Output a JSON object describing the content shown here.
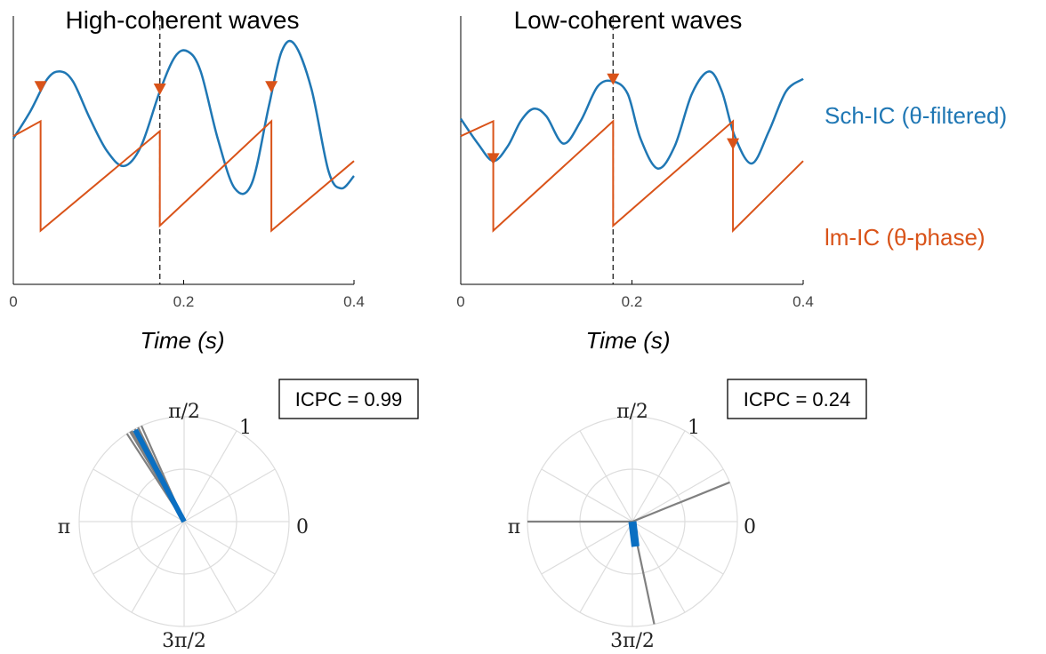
{
  "colors": {
    "wave": "#1f77b4",
    "phase": "#d95319",
    "marker": "#d95319",
    "trial_line": "#808080",
    "mean_vector": "#0a6fc2",
    "grid": "#dddddd",
    "axis": "#000000"
  },
  "legend": {
    "wave_label": "Sch-IC (θ-filtered)",
    "phase_label": "lm-IC (θ-phase)"
  },
  "chart_data": [
    {
      "type": "line",
      "title": "High-coherent waves",
      "xlabel": "Time (s)",
      "xlim": [
        0,
        0.4
      ],
      "xticks": [
        "0",
        "0.2",
        "0.4"
      ],
      "xtick_values": [
        0,
        0.2,
        0.4
      ],
      "event_line_x": 0.172,
      "series": [
        {
          "kind": "wave",
          "x": [
            0,
            0.02,
            0.04,
            0.055,
            0.07,
            0.09,
            0.11,
            0.13,
            0.15,
            0.172,
            0.19,
            0.205,
            0.22,
            0.24,
            0.26,
            0.28,
            0.3,
            0.315,
            0.33,
            0.35,
            0.37,
            0.385,
            0.4
          ],
          "y": [
            0.55,
            0.66,
            0.79,
            0.82,
            0.78,
            0.63,
            0.5,
            0.44,
            0.52,
            0.74,
            0.88,
            0.9,
            0.82,
            0.55,
            0.35,
            0.37,
            0.68,
            0.9,
            0.93,
            0.75,
            0.42,
            0.35,
            0.4
          ]
        },
        {
          "kind": "phase",
          "x": [
            0,
            0.032,
            0.032,
            0.172,
            0.172,
            0.303,
            0.303,
            0.4
          ],
          "y": [
            0.56,
            0.62,
            0.18,
            0.58,
            0.2,
            0.62,
            0.18,
            0.46
          ]
        }
      ],
      "markers_x": [
        0.032,
        0.172,
        0.303
      ],
      "markers_y": [
        0.76,
        0.75,
        0.76
      ]
    },
    {
      "type": "line",
      "title": "Low-coherent waves",
      "xlabel": "Time (s)",
      "xlim": [
        0,
        0.4
      ],
      "xticks": [
        "0",
        "0.2",
        "0.4"
      ],
      "xtick_values": [
        0,
        0.2,
        0.4
      ],
      "event_line_x": 0.178,
      "series": [
        {
          "kind": "wave",
          "x": [
            0,
            0.02,
            0.038,
            0.055,
            0.07,
            0.085,
            0.1,
            0.12,
            0.14,
            0.16,
            0.178,
            0.195,
            0.21,
            0.23,
            0.25,
            0.27,
            0.29,
            0.305,
            0.32,
            0.34,
            0.36,
            0.38,
            0.4
          ],
          "y": [
            0.63,
            0.53,
            0.46,
            0.52,
            0.62,
            0.67,
            0.64,
            0.53,
            0.62,
            0.76,
            0.78,
            0.73,
            0.55,
            0.43,
            0.52,
            0.73,
            0.82,
            0.74,
            0.56,
            0.45,
            0.58,
            0.74,
            0.79
          ]
        },
        {
          "kind": "phase",
          "x": [
            0,
            0.038,
            0.038,
            0.178,
            0.178,
            0.318,
            0.318,
            0.4
          ],
          "y": [
            0.56,
            0.62,
            0.18,
            0.62,
            0.2,
            0.62,
            0.18,
            0.46
          ]
        }
      ],
      "markers_x": [
        0.038,
        0.178,
        0.318
      ],
      "markers_y": [
        0.47,
        0.79,
        0.53
      ]
    },
    {
      "type": "polar",
      "icpc_text": "ICPC = 0.99",
      "labels": {
        "top": "π/2",
        "left": "π",
        "right": "0",
        "bottom": "3π/2",
        "radius": "1"
      },
      "rlim": [
        0,
        1
      ],
      "trial_angles_deg": [
        114,
        116,
        118,
        120,
        121,
        123
      ],
      "trial_lengths": [
        1,
        1,
        1,
        1,
        1,
        1
      ],
      "mean_angle_deg": 118,
      "mean_length": 0.99
    },
    {
      "type": "polar",
      "icpc_text": "ICPC = 0.24",
      "labels": {
        "top": "π/2",
        "left": "π",
        "right": "0",
        "bottom": "3π/2",
        "radius": "1"
      },
      "rlim": [
        0,
        1
      ],
      "trial_angles_deg": [
        180,
        22,
        282
      ],
      "trial_lengths": [
        1,
        1,
        1
      ],
      "mean_angle_deg": 277,
      "mean_length": 0.24
    }
  ]
}
